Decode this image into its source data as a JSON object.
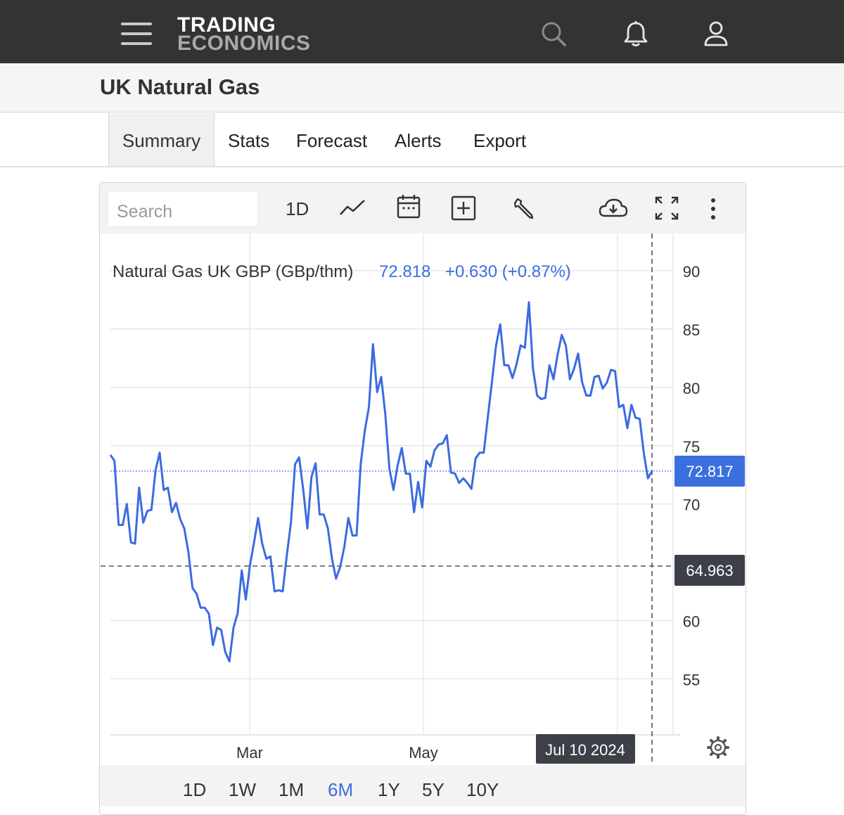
{
  "header": {
    "logo_line1": "TRADING",
    "logo_line2": "ECONOMICS",
    "icons": [
      "menu-icon",
      "search-icon",
      "bell-icon",
      "user-icon"
    ]
  },
  "page": {
    "title": "UK Natural Gas"
  },
  "tabs": [
    {
      "label": "Summary",
      "active": true
    },
    {
      "label": "Stats"
    },
    {
      "label": "Forecast"
    },
    {
      "label": "Alerts"
    },
    {
      "label": "Export"
    }
  ],
  "toolbar": {
    "search_placeholder": "Search",
    "interval_label": "1D",
    "icons": [
      "line-chart-icon",
      "calendar-icon",
      "add-indicator-icon",
      "wrench-icon",
      "cloud-download-icon",
      "fullscreen-icon",
      "more-icon"
    ]
  },
  "ranges": [
    {
      "label": "1D"
    },
    {
      "label": "1W"
    },
    {
      "label": "1M"
    },
    {
      "label": "6M",
      "active": true
    },
    {
      "label": "1Y"
    },
    {
      "label": "5Y"
    },
    {
      "label": "10Y"
    }
  ],
  "colors": {
    "accent": "#3a6fe0",
    "line": "#3b6be0",
    "topbar": "#333333",
    "crosshair_label_bg": "#3d4048"
  },
  "chart_data": {
    "type": "line",
    "legend": {
      "name": "Natural Gas UK GBP (GBp/thm)",
      "value": "72.818",
      "change": "+0.630 (+0.87%)"
    },
    "y_ticks": [
      55,
      60,
      70,
      75,
      80,
      85,
      90
    ],
    "x_tick_labels": [
      "Mar",
      "May"
    ],
    "ylim": [
      50.2,
      93.2
    ],
    "current_price_label": "72.817",
    "crosshair_price_label": "64.963",
    "crosshair_date_label": "Jul 10 2024",
    "series": [
      {
        "values": [
          74.2,
          73.7,
          68.2,
          68.2,
          70,
          66.7,
          66.6,
          71.4,
          68.4,
          69.4,
          69.5,
          72.9,
          74.4,
          71.2,
          71.4,
          69.3,
          70.1,
          68.7,
          67.9,
          65.9,
          62.8,
          62.3,
          61.1,
          61.1,
          60.6,
          57.9,
          59.4,
          59.2,
          57.3,
          56.5,
          59.4,
          60.6,
          64.3,
          61.8,
          64.7,
          66.7,
          68.8,
          66.6,
          65.3,
          65.5,
          62.5,
          62.6,
          62.5,
          65.6,
          68.4,
          73.4,
          74,
          71.2,
          67.9,
          72.3,
          73.5,
          69.1,
          69.1,
          67.9,
          65.3,
          63.6,
          64.6,
          66.3,
          68.8,
          67.3,
          67.3,
          73.4,
          76.3,
          78.3,
          83.7,
          79.6,
          80.9,
          77.7,
          73,
          71.2,
          73.3,
          74.8,
          72.6,
          72.6,
          69.3,
          71.9,
          69.7,
          73.7,
          73.2,
          74.6,
          75.1,
          75.2,
          75.9,
          72.7,
          72.6,
          71.8,
          72.2,
          71.8,
          71.3,
          73.9,
          74.4,
          74.4,
          77.5,
          80.5,
          83.6,
          85.4,
          81.9,
          81.9,
          80.8,
          82,
          83.6,
          83.4,
          87.3,
          81.6,
          79.3,
          79,
          79.1,
          81.9,
          80.7,
          82.8,
          84.5,
          83.6,
          80.7,
          81.6,
          82.9,
          80.4,
          79.3,
          79.3,
          80.9,
          81,
          79.9,
          80.4,
          81.5,
          81.4,
          78.3,
          78.5,
          76.5,
          78.5,
          77.4,
          77.3,
          74.4,
          72.2,
          72.818
        ]
      }
    ]
  }
}
